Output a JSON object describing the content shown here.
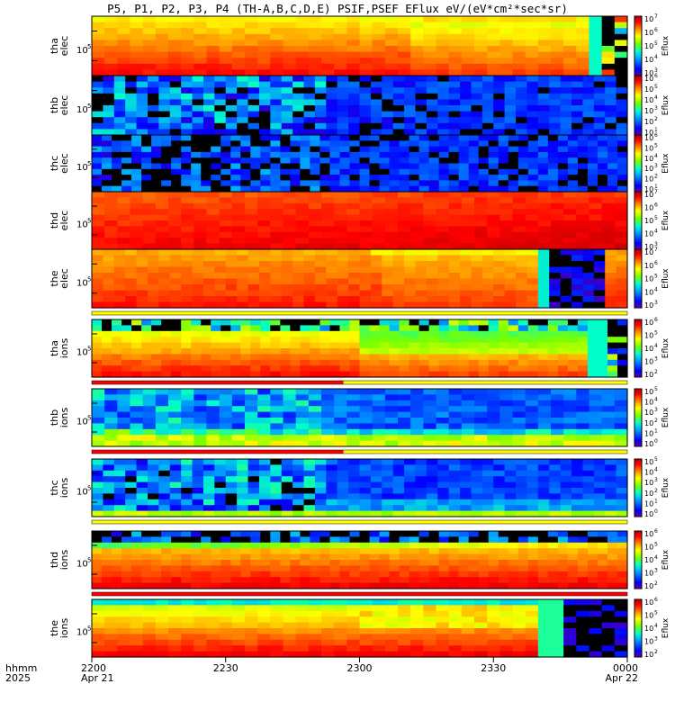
{
  "title": "P5, P1, P2, P3, P4 (TH-A,B,C,D,E) PSIF,PSEF EFlux eV/(eV*cm²*sec*sr)",
  "colors": {
    "flag_red": "#ff0000",
    "flag_yellow": "#ffff00"
  },
  "x_axis": {
    "row_label_1": "hhmm",
    "row_label_2": "2025",
    "ticks": [
      {
        "time": "2200",
        "date": "Apr 21",
        "frac": 0.0
      },
      {
        "time": "2230",
        "date": "",
        "frac": 0.25
      },
      {
        "time": "2300",
        "date": "",
        "frac": 0.5
      },
      {
        "time": "2330",
        "date": "",
        "frac": 0.75
      },
      {
        "time": "0000",
        "date": "Apr 22",
        "frac": 1.0
      }
    ]
  },
  "chart_data": {
    "type": "heatmap",
    "x_range": [
      "2025-04-21 22:00",
      "2025-04-22 00:00"
    ],
    "colorbar_label": "Eflux",
    "panels": [
      {
        "probe": "tha",
        "species": "elec",
        "ytick": "10",
        "ysup": "5",
        "cb": [
          "10",
          "7",
          "10",
          "6",
          "10",
          "5",
          "10",
          "4",
          "10",
          "3"
        ],
        "flags": []
      },
      {
        "probe": "thb",
        "species": "elec",
        "ytick": "10",
        "ysup": "5",
        "cb": [
          "10",
          "6",
          "10",
          "5",
          "10",
          "4",
          "10",
          "3",
          "10",
          "2",
          "10",
          "1"
        ],
        "flags": []
      },
      {
        "probe": "thc",
        "species": "elec",
        "ytick": "10",
        "ysup": "5",
        "cb": [
          "10",
          "6",
          "10",
          "5",
          "10",
          "4",
          "10",
          "3",
          "10",
          "2",
          "10",
          "1"
        ],
        "flags": []
      },
      {
        "probe": "thd",
        "species": "elec",
        "ytick": "10",
        "ysup": "5",
        "cb": [
          "10",
          "7",
          "10",
          "6",
          "10",
          "5",
          "10",
          "4",
          "10",
          "3"
        ],
        "flags": []
      },
      {
        "probe": "the",
        "species": "elec",
        "ytick": "10",
        "ysup": "5",
        "cb": [
          "10",
          "7",
          "10",
          "6",
          "10",
          "5",
          "10",
          "4",
          "10",
          "3"
        ],
        "flags": [
          "yellow"
        ]
      },
      {
        "probe": "tha",
        "species": "ions",
        "ytick": "10",
        "ysup": "5",
        "cb": [
          "10",
          "6",
          "10",
          "5",
          "10",
          "4",
          "10",
          "3",
          "10",
          "2"
        ],
        "flags": [
          "red-yellow"
        ]
      },
      {
        "probe": "thb",
        "species": "ions",
        "ytick": "10",
        "ysup": "5",
        "cb": [
          "10",
          "5",
          "10",
          "4",
          "10",
          "3",
          "10",
          "2",
          "10",
          "1",
          "10",
          "0"
        ],
        "flags": [
          "red-yellow"
        ]
      },
      {
        "probe": "thc",
        "species": "ions",
        "ytick": "10",
        "ysup": "5",
        "cb": [
          "10",
          "5",
          "10",
          "4",
          "10",
          "3",
          "10",
          "2",
          "10",
          "1",
          "10",
          "0"
        ],
        "flags": [
          "yellow"
        ]
      },
      {
        "probe": "thd",
        "species": "ions",
        "ytick": "10",
        "ysup": "5",
        "cb": [
          "10",
          "6",
          "10",
          "5",
          "10",
          "4",
          "10",
          "3",
          "10",
          "2"
        ],
        "flags": [
          "red"
        ]
      },
      {
        "probe": "the",
        "species": "ions",
        "ytick": "10",
        "ysup": "5",
        "cb": [
          "10",
          "6",
          "10",
          "5",
          "10",
          "4",
          "10",
          "3",
          "10",
          "2"
        ],
        "flags": []
      }
    ]
  }
}
